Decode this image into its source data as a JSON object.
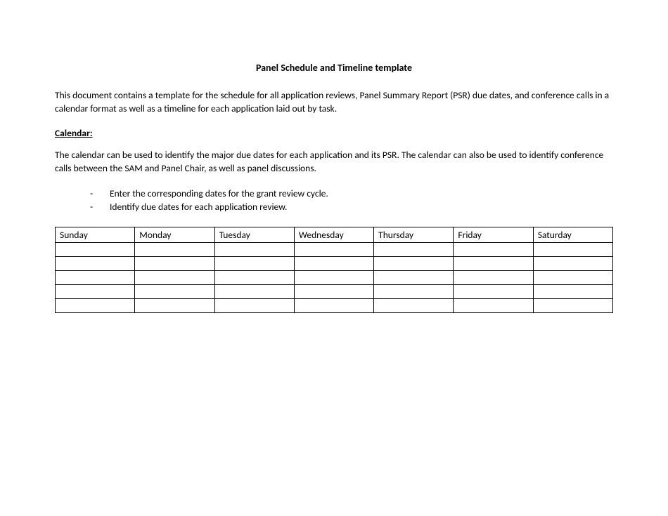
{
  "title": "Panel Schedule and Timeline template",
  "intro": "This document contains a template for the schedule for all application reviews, Panel Summary Report (PSR) due dates, and conference calls in a calendar format as well as a timeline for each application laid out by task.",
  "calendar_heading": "Calendar:",
  "calendar_para": "The calendar can be used to identify the major due dates for each application and its PSR.  The calendar can also be used to identify conference calls between the SAM and Panel Chair, as well as panel discussions.",
  "bullets": [
    "Enter the corresponding dates for the grant review cycle.",
    "Identify due dates for each application review."
  ],
  "table": {
    "columns": [
      "Sunday",
      "Monday",
      "Tuesday",
      "Wednesday",
      "Thursday",
      "Friday",
      "Saturday"
    ],
    "rows": [
      [
        "",
        "",
        "",
        "",
        "",
        "",
        ""
      ],
      [
        "",
        "",
        "",
        "",
        "",
        "",
        ""
      ],
      [
        "",
        "",
        "",
        "",
        "",
        "",
        ""
      ],
      [
        "",
        "",
        "",
        "",
        "",
        "",
        ""
      ],
      [
        "",
        "",
        "",
        "",
        "",
        "",
        ""
      ]
    ]
  }
}
